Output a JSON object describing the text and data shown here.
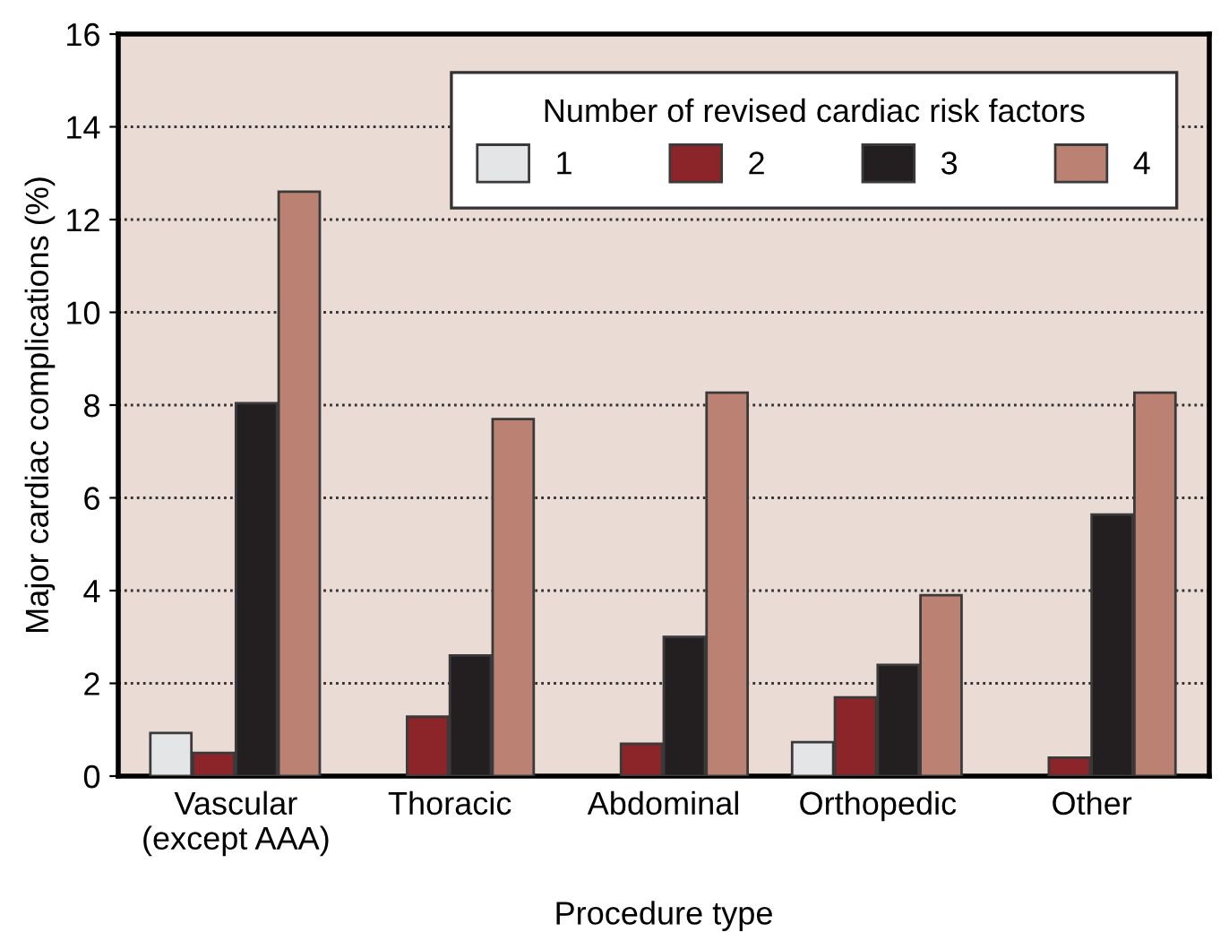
{
  "chart_data": {
    "type": "bar",
    "xlabel": "Procedure type",
    "ylabel": "Major cardiac complications (%)",
    "legend_title": "Number of revised cardiac risk factors",
    "categories": [
      "Vascular\n(except AAA)",
      "Thoracic",
      "Abdominal",
      "Orthopedic",
      "Other"
    ],
    "series": [
      {
        "name": "1",
        "color": "#e4e5e7",
        "values": [
          0.93,
          null,
          null,
          0.73,
          null
        ]
      },
      {
        "name": "2",
        "color": "#8b252a",
        "values": [
          0.5,
          1.28,
          0.7,
          1.7,
          0.4
        ]
      },
      {
        "name": "3",
        "color": "#231f20",
        "values": [
          8.04,
          2.6,
          3.0,
          2.4,
          5.64
        ]
      },
      {
        "name": "4",
        "color": "#bb8273",
        "values": [
          12.6,
          7.7,
          8.27,
          3.9,
          8.27
        ]
      }
    ],
    "ylim": [
      0,
      16
    ],
    "yticks": [
      0,
      2,
      4,
      6,
      8,
      10,
      12,
      14,
      16
    ],
    "grid": "y",
    "legend": "top right"
  }
}
